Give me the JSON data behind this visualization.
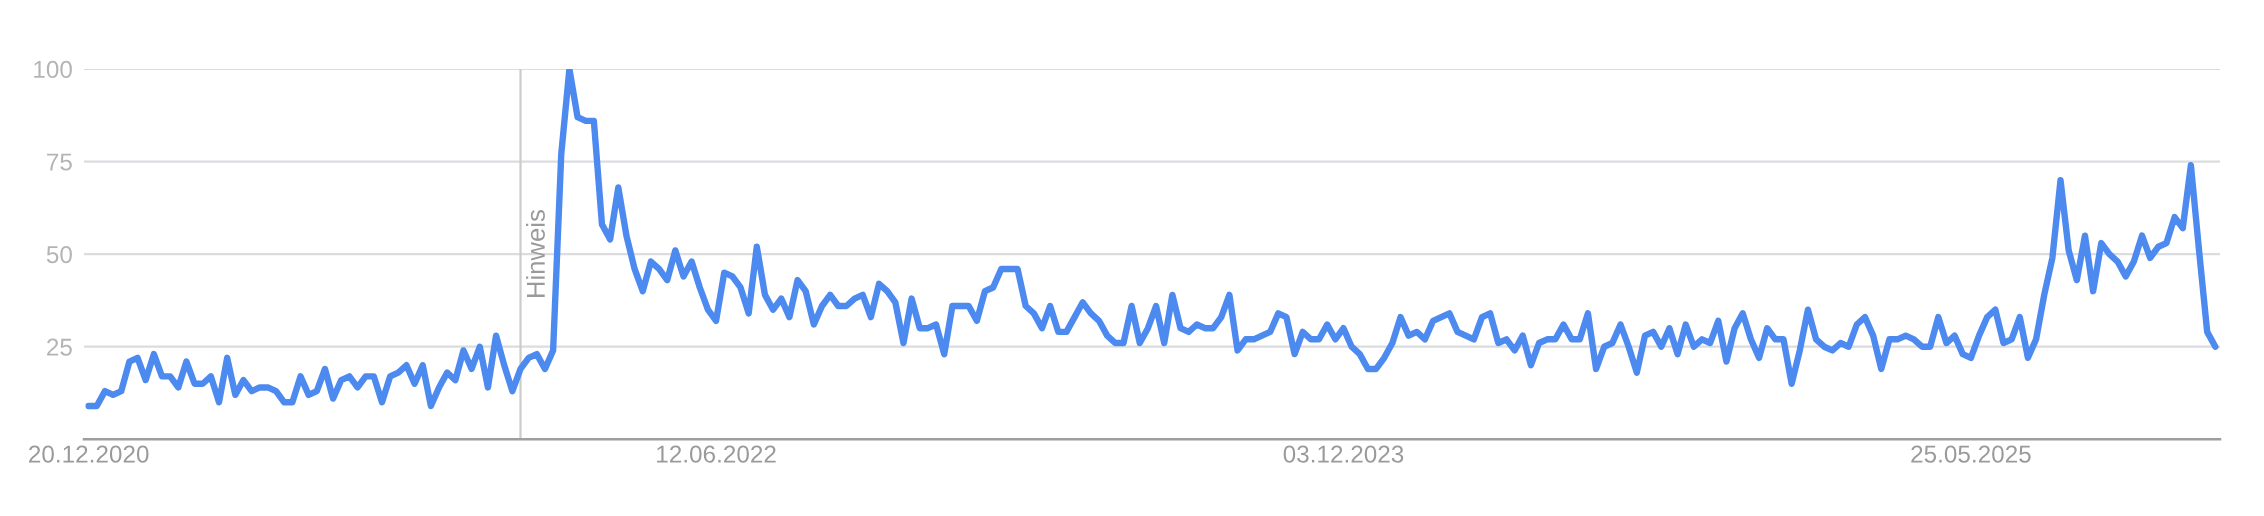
{
  "chart_data": {
    "type": "line",
    "x": [
      "2020-12-20",
      "2020-12-27",
      "2021-01-03",
      "2021-01-10",
      "2021-01-17",
      "2021-01-24",
      "2021-01-31",
      "2021-02-07",
      "2021-02-14",
      "2021-02-21",
      "2021-02-28",
      "2021-03-07",
      "2021-03-14",
      "2021-03-21",
      "2021-03-28",
      "2021-04-04",
      "2021-04-11",
      "2021-04-18",
      "2021-04-25",
      "2021-05-02",
      "2021-05-09",
      "2021-05-16",
      "2021-05-23",
      "2021-05-30",
      "2021-06-06",
      "2021-06-13",
      "2021-06-20",
      "2021-06-27",
      "2021-07-04",
      "2021-07-11",
      "2021-07-18",
      "2021-07-25",
      "2021-08-01",
      "2021-08-08",
      "2021-08-15",
      "2021-08-22",
      "2021-08-29",
      "2021-09-05",
      "2021-09-12",
      "2021-09-19",
      "2021-09-26",
      "2021-10-03",
      "2021-10-10",
      "2021-10-17",
      "2021-10-24",
      "2021-10-31",
      "2021-11-07",
      "2021-11-14",
      "2021-11-21",
      "2021-11-28",
      "2021-12-05",
      "2021-12-12",
      "2021-12-19",
      "2021-12-26",
      "2022-01-02",
      "2022-01-09",
      "2022-01-16",
      "2022-01-23",
      "2022-01-30",
      "2022-02-06",
      "2022-02-13",
      "2022-02-20",
      "2022-02-27",
      "2022-03-06",
      "2022-03-13",
      "2022-03-20",
      "2022-03-27",
      "2022-04-03",
      "2022-04-10",
      "2022-04-17",
      "2022-04-24",
      "2022-05-01",
      "2022-05-08",
      "2022-05-15",
      "2022-05-22",
      "2022-05-29",
      "2022-06-05",
      "2022-06-12",
      "2022-06-19",
      "2022-06-26",
      "2022-07-03",
      "2022-07-10",
      "2022-07-17",
      "2022-07-24",
      "2022-07-31",
      "2022-08-07",
      "2022-08-14",
      "2022-08-21",
      "2022-08-28",
      "2022-09-04",
      "2022-09-11",
      "2022-09-18",
      "2022-09-25",
      "2022-10-02",
      "2022-10-09",
      "2022-10-16",
      "2022-10-23",
      "2022-10-30",
      "2022-11-06",
      "2022-11-13",
      "2022-11-20",
      "2022-11-27",
      "2022-12-04",
      "2022-12-11",
      "2022-12-18",
      "2022-12-25",
      "2023-01-01",
      "2023-01-08",
      "2023-01-15",
      "2023-01-22",
      "2023-01-29",
      "2023-02-05",
      "2023-02-12",
      "2023-02-19",
      "2023-02-26",
      "2023-03-05",
      "2023-03-12",
      "2023-03-19",
      "2023-03-26",
      "2023-04-02",
      "2023-04-09",
      "2023-04-16",
      "2023-04-23",
      "2023-04-30",
      "2023-05-07",
      "2023-05-14",
      "2023-05-21",
      "2023-05-28",
      "2023-06-04",
      "2023-06-11",
      "2023-06-18",
      "2023-06-25",
      "2023-07-02",
      "2023-07-09",
      "2023-07-16",
      "2023-07-23",
      "2023-07-30",
      "2023-08-06",
      "2023-08-13",
      "2023-08-20",
      "2023-08-27",
      "2023-09-03",
      "2023-09-10",
      "2023-09-17",
      "2023-09-24",
      "2023-10-01",
      "2023-10-08",
      "2023-10-15",
      "2023-10-22",
      "2023-10-29",
      "2023-11-05",
      "2023-11-12",
      "2023-11-19",
      "2023-11-26",
      "2023-12-03",
      "2023-12-10",
      "2023-12-17",
      "2023-12-24",
      "2023-12-31",
      "2024-01-07",
      "2024-01-14",
      "2024-01-21",
      "2024-01-28",
      "2024-02-04",
      "2024-02-11",
      "2024-02-18",
      "2024-02-25",
      "2024-03-03",
      "2024-03-10",
      "2024-03-17",
      "2024-03-24",
      "2024-03-31",
      "2024-04-07",
      "2024-04-14",
      "2024-04-21",
      "2024-04-28",
      "2024-05-05",
      "2024-05-12",
      "2024-05-19",
      "2024-05-26",
      "2024-06-02",
      "2024-06-09",
      "2024-06-16",
      "2024-06-23",
      "2024-06-30",
      "2024-07-07",
      "2024-07-14",
      "2024-07-21",
      "2024-07-28",
      "2024-08-04",
      "2024-08-11",
      "2024-08-18",
      "2024-08-25",
      "2024-09-01",
      "2024-09-08",
      "2024-09-15",
      "2024-09-22",
      "2024-09-29",
      "2024-10-06",
      "2024-10-13",
      "2024-10-20",
      "2024-10-27",
      "2024-11-03",
      "2024-11-10",
      "2024-11-17",
      "2024-11-24",
      "2024-12-01",
      "2024-12-08",
      "2024-12-15",
      "2024-12-22",
      "2024-12-29",
      "2025-01-05",
      "2025-01-12",
      "2025-01-19",
      "2025-01-26",
      "2025-02-02",
      "2025-02-09",
      "2025-02-16",
      "2025-02-23",
      "2025-03-02",
      "2025-03-09",
      "2025-03-16",
      "2025-03-23",
      "2025-03-30",
      "2025-04-06",
      "2025-04-13",
      "2025-04-20",
      "2025-04-27",
      "2025-05-04",
      "2025-05-11",
      "2025-05-18",
      "2025-05-25",
      "2025-06-01",
      "2025-06-08",
      "2025-06-15",
      "2025-06-22",
      "2025-06-29",
      "2025-07-06",
      "2025-07-13",
      "2025-07-20",
      "2025-07-27",
      "2025-08-03",
      "2025-08-10",
      "2025-08-17",
      "2025-08-24",
      "2025-08-31",
      "2025-09-07",
      "2025-09-14",
      "2025-09-21",
      "2025-09-28",
      "2025-10-05",
      "2025-10-12",
      "2025-10-19",
      "2025-10-26",
      "2025-11-02",
      "2025-11-09",
      "2025-11-16",
      "2025-11-23",
      "2025-11-30",
      "2025-12-07",
      "2025-12-14",
      "2025-12-21"
    ],
    "series": [
      {
        "color": "#4d8af0",
        "values": [
          9,
          9,
          13,
          12,
          13,
          21,
          22,
          16,
          23,
          17,
          17,
          14,
          21,
          15,
          15,
          17,
          10,
          22,
          12,
          16,
          13,
          14,
          14,
          13,
          10,
          10,
          17,
          12,
          13,
          19,
          11,
          16,
          17,
          14,
          17,
          17,
          10,
          17,
          18,
          20,
          15,
          20,
          9,
          14,
          18,
          16,
          24,
          19,
          25,
          14,
          28,
          20,
          13,
          19,
          22,
          23,
          19,
          24,
          77,
          100,
          87,
          86,
          86,
          58,
          54,
          68,
          55,
          46,
          40,
          48,
          46,
          43,
          51,
          44,
          48,
          41,
          35,
          32,
          45,
          44,
          41,
          34,
          52,
          39,
          35,
          38,
          33,
          43,
          40,
          31,
          36,
          39,
          36,
          36,
          38,
          39,
          33,
          42,
          40,
          37,
          26,
          38,
          30,
          30,
          31,
          23,
          36,
          36,
          36,
          32,
          40,
          41,
          46,
          46,
          46,
          36,
          34,
          30,
          36,
          29,
          29,
          33,
          37,
          34,
          32,
          28,
          26,
          26,
          36,
          26,
          30,
          36,
          26,
          39,
          30,
          29,
          31,
          30,
          30,
          33,
          39,
          24,
          27,
          27,
          28,
          29,
          34,
          33,
          23,
          29,
          27,
          27,
          31,
          27,
          30,
          25,
          23,
          19,
          19,
          22,
          26,
          33,
          28,
          29,
          27,
          32,
          33,
          34,
          29,
          28,
          27,
          33,
          34,
          26,
          27,
          24,
          28,
          20,
          26,
          27,
          27,
          31,
          27,
          27,
          34,
          19,
          25,
          26,
          31,
          25,
          18,
          28,
          29,
          25,
          30,
          23,
          31,
          25,
          27,
          26,
          32,
          21,
          30,
          34,
          27,
          22,
          30,
          27,
          27,
          15,
          24,
          35,
          27,
          25,
          24,
          26,
          25,
          31,
          33,
          28,
          19,
          27,
          27,
          28,
          27,
          25,
          25,
          33,
          26,
          28,
          23,
          22,
          28,
          33,
          35,
          26,
          27,
          33,
          22,
          27,
          39,
          49,
          70,
          51,
          43,
          55,
          40,
          53,
          50,
          48,
          44,
          48,
          55,
          49,
          52,
          53,
          60,
          57,
          74,
          51,
          29,
          25
        ]
      }
    ],
    "line_style": "solid",
    "xlim": [
      "2020-12-16",
      "2025-12-25"
    ],
    "xticks": [
      {
        "value": "2020-12-20",
        "label": "20.12.2020"
      },
      {
        "value": "2022-06-12",
        "label": "12.06.2022"
      },
      {
        "value": "2023-12-03",
        "label": "03.12.2023"
      },
      {
        "value": "2025-05-25",
        "label": "25.05.2025"
      }
    ],
    "ylim": [
      0,
      100
    ],
    "yticks": [
      25,
      50,
      75,
      100
    ],
    "grid": "y",
    "ref_lines": [
      {
        "axis": "x",
        "value": "2021-12-26",
        "label": "Hinweis",
        "color": "#cccccc"
      }
    ]
  }
}
